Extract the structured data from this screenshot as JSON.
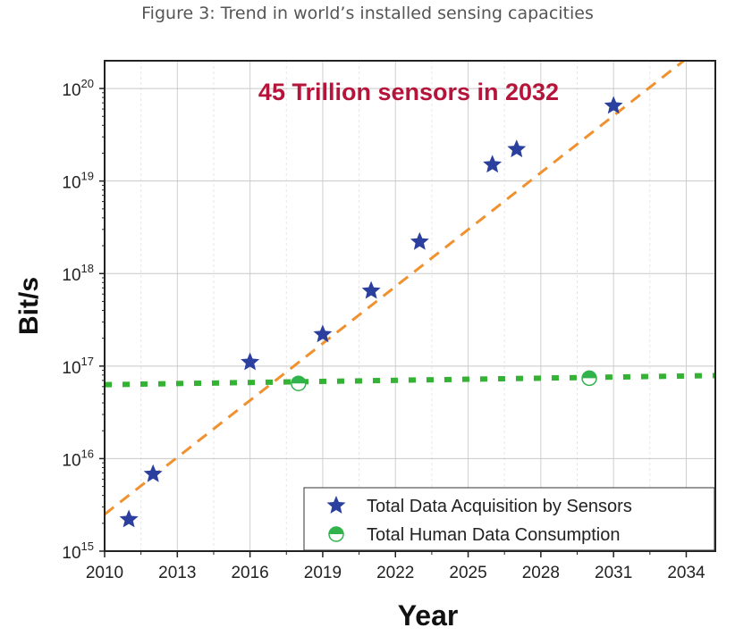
{
  "figure_title": "Figure 3: Trend in world’s installed sensing capacities",
  "chart_data": {
    "type": "scatter",
    "title": "Figure 3: Trend in world’s installed sensing capacities",
    "annotation": "45 Trillion sensors in 2032",
    "xlabel": "Year",
    "ylabel": "Bit/s",
    "xlim": [
      2010,
      2035.2
    ],
    "ylim_log10": [
      15,
      20.3
    ],
    "yscale": "log",
    "xticks": [
      2010,
      2013,
      2016,
      2019,
      2022,
      2025,
      2028,
      2031,
      2034
    ],
    "yticks": [
      {
        "base": "10",
        "exp": "15"
      },
      {
        "base": "10",
        "exp": "16"
      },
      {
        "base": "10",
        "exp": "17"
      },
      {
        "base": "10",
        "exp": "18"
      },
      {
        "base": "10",
        "exp": "19"
      },
      {
        "base": "10",
        "exp": "20"
      }
    ],
    "grid": true,
    "legend_position": "bottom-right",
    "series": [
      {
        "name": "Total Data Acquisition by Sensors",
        "marker": "star",
        "color": "#2b3f9e",
        "x": [
          2011,
          2012,
          2016,
          2019,
          2021,
          2023,
          2026,
          2027,
          2031
        ],
        "y": [
          2200000000000000.0,
          6800000000000000.0,
          1.1e+17,
          2.2e+17,
          6.5e+17,
          2.2e+18,
          1.5e+19,
          2.2e+19,
          6.5e+19
        ]
      },
      {
        "name": "Total Human Data Consumption",
        "marker": "half-circle",
        "color": "#2fb34a",
        "x": [
          2018,
          2030
        ],
        "y": [
          6.5e+16,
          7.4e+16
        ]
      }
    ],
    "trendlines": [
      {
        "name": "sensor-trend",
        "style": "dashed",
        "color": "#f0912e",
        "x": [
          2010,
          2033.9
        ],
        "y": [
          2500000000000000.0,
          2e+20
        ]
      },
      {
        "name": "human-trend",
        "style": "dotted",
        "color": "#33b233",
        "x": [
          2010,
          2035.2
        ],
        "y": [
          6.3e+16,
          7.9e+16
        ]
      }
    ],
    "annotation_color": "#b5153a"
  }
}
